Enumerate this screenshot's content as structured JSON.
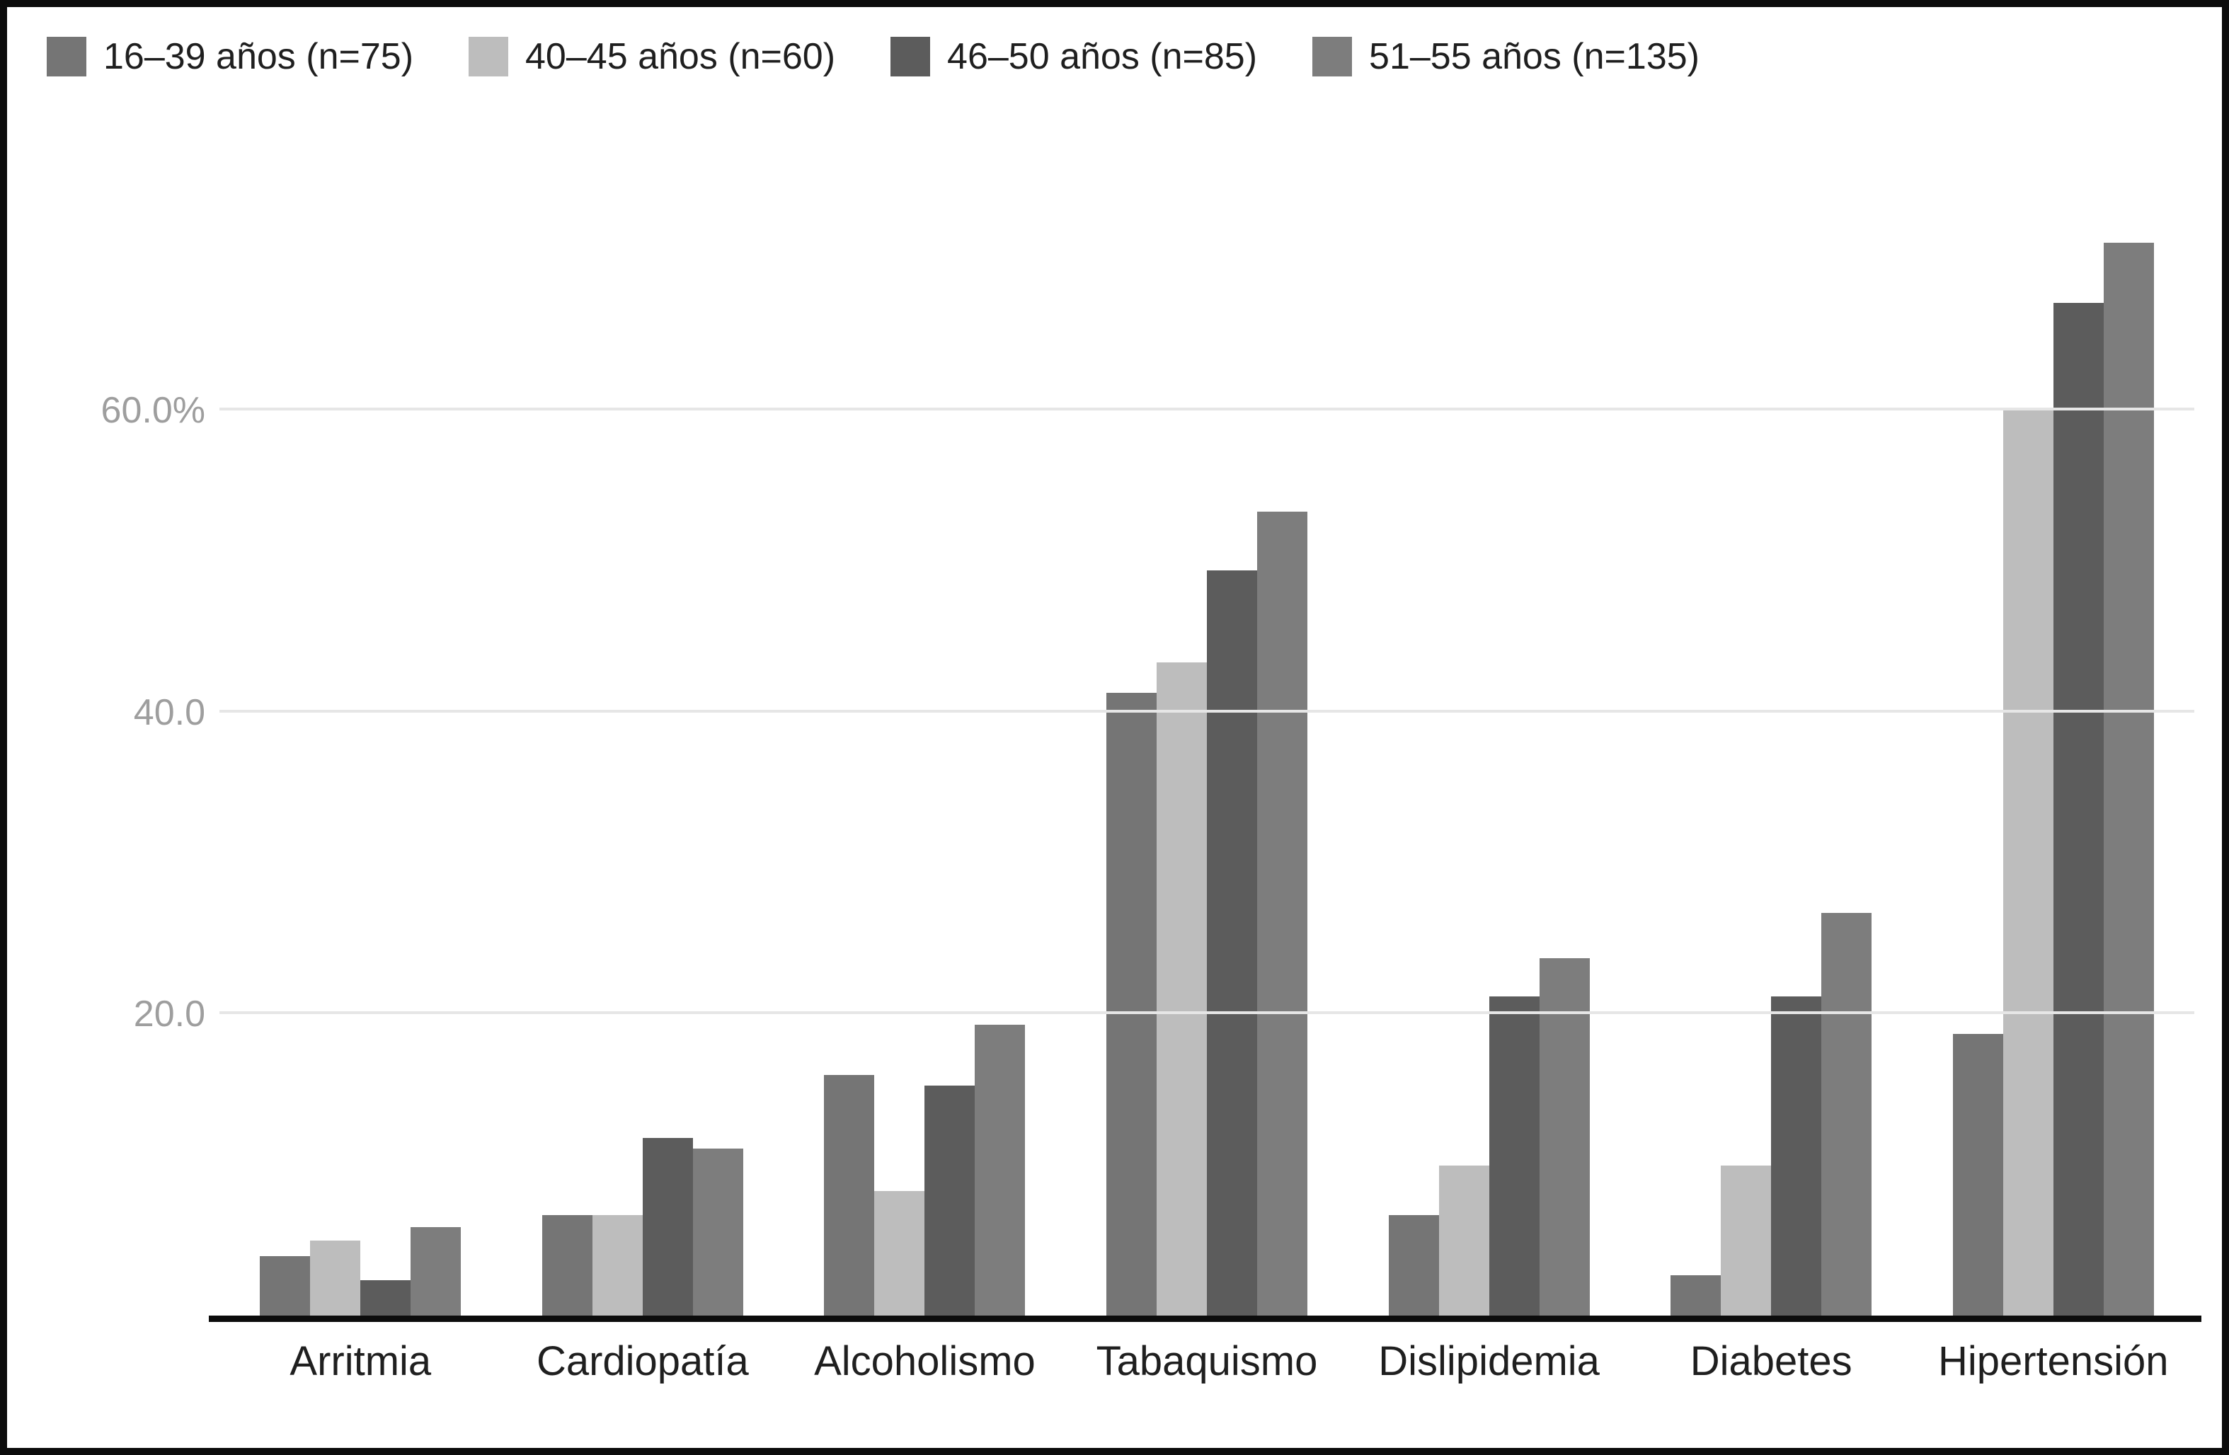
{
  "chart_data": {
    "type": "bar",
    "title": "",
    "xlabel": "",
    "ylabel": "",
    "categories": [
      "Arritmia",
      "Cardiopatía",
      "Alcoholismo",
      "Tabaquismo",
      "Dislipidemia",
      "Diabetes",
      "Hipertensión"
    ],
    "series": [
      {
        "name": "16–39 años (n=75)",
        "color": "#757575",
        "values": [
          4.0,
          6.7,
          16.0,
          41.3,
          6.7,
          2.7,
          18.7
        ]
      },
      {
        "name": "40–45 años (n=60)",
        "color": "#bdbdbd",
        "values": [
          5.0,
          6.7,
          8.3,
          43.3,
          10.0,
          10.0,
          60.0
        ]
      },
      {
        "name": "46–50 años (n=85)",
        "color": "#5c5c5c",
        "values": [
          2.4,
          11.8,
          15.3,
          49.4,
          21.2,
          21.2,
          67.1
        ]
      },
      {
        "name": "51–55 años (n=135)",
        "color": "#7d7d7d",
        "values": [
          5.9,
          11.1,
          19.3,
          53.3,
          23.7,
          26.7,
          71.1
        ]
      }
    ],
    "y_ticks": [
      {
        "value": 20,
        "label": "20.0"
      },
      {
        "value": 40,
        "label": "40.0"
      },
      {
        "value": 60,
        "label": "60.0%"
      }
    ],
    "ylim": [
      0,
      80
    ],
    "grid": true,
    "legend_position": "top-left",
    "colors": {
      "gridline": "#e6e6e6",
      "axis_line": "#0c0c0c",
      "tick_text": "#9e9e9e",
      "label_text": "#1f1f1f",
      "background": "#ffffff"
    }
  }
}
